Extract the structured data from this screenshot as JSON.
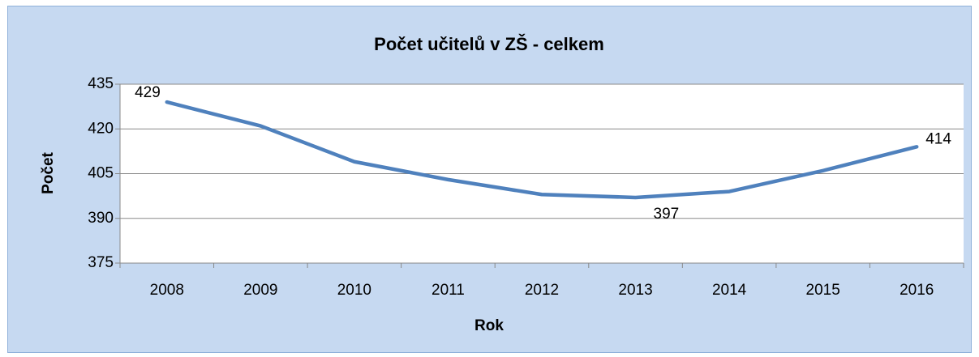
{
  "chart_data": {
    "type": "line",
    "title": "Počet učitelů v ZŠ - celkem",
    "x_label": "Rok",
    "y_label": "Počet",
    "categories": [
      "2008",
      "2009",
      "2010",
      "2011",
      "2012",
      "2013",
      "2014",
      "2015",
      "2016"
    ],
    "values": [
      429,
      421,
      409,
      403,
      398,
      397,
      399,
      406,
      414
    ],
    "value_labels": [
      "429",
      null,
      null,
      null,
      null,
      "397",
      null,
      null,
      "414"
    ],
    "color": "#4f81bd",
    "ylim": [
      375,
      435
    ],
    "yticks": [
      375,
      390,
      405,
      420,
      435
    ],
    "grid": true
  }
}
